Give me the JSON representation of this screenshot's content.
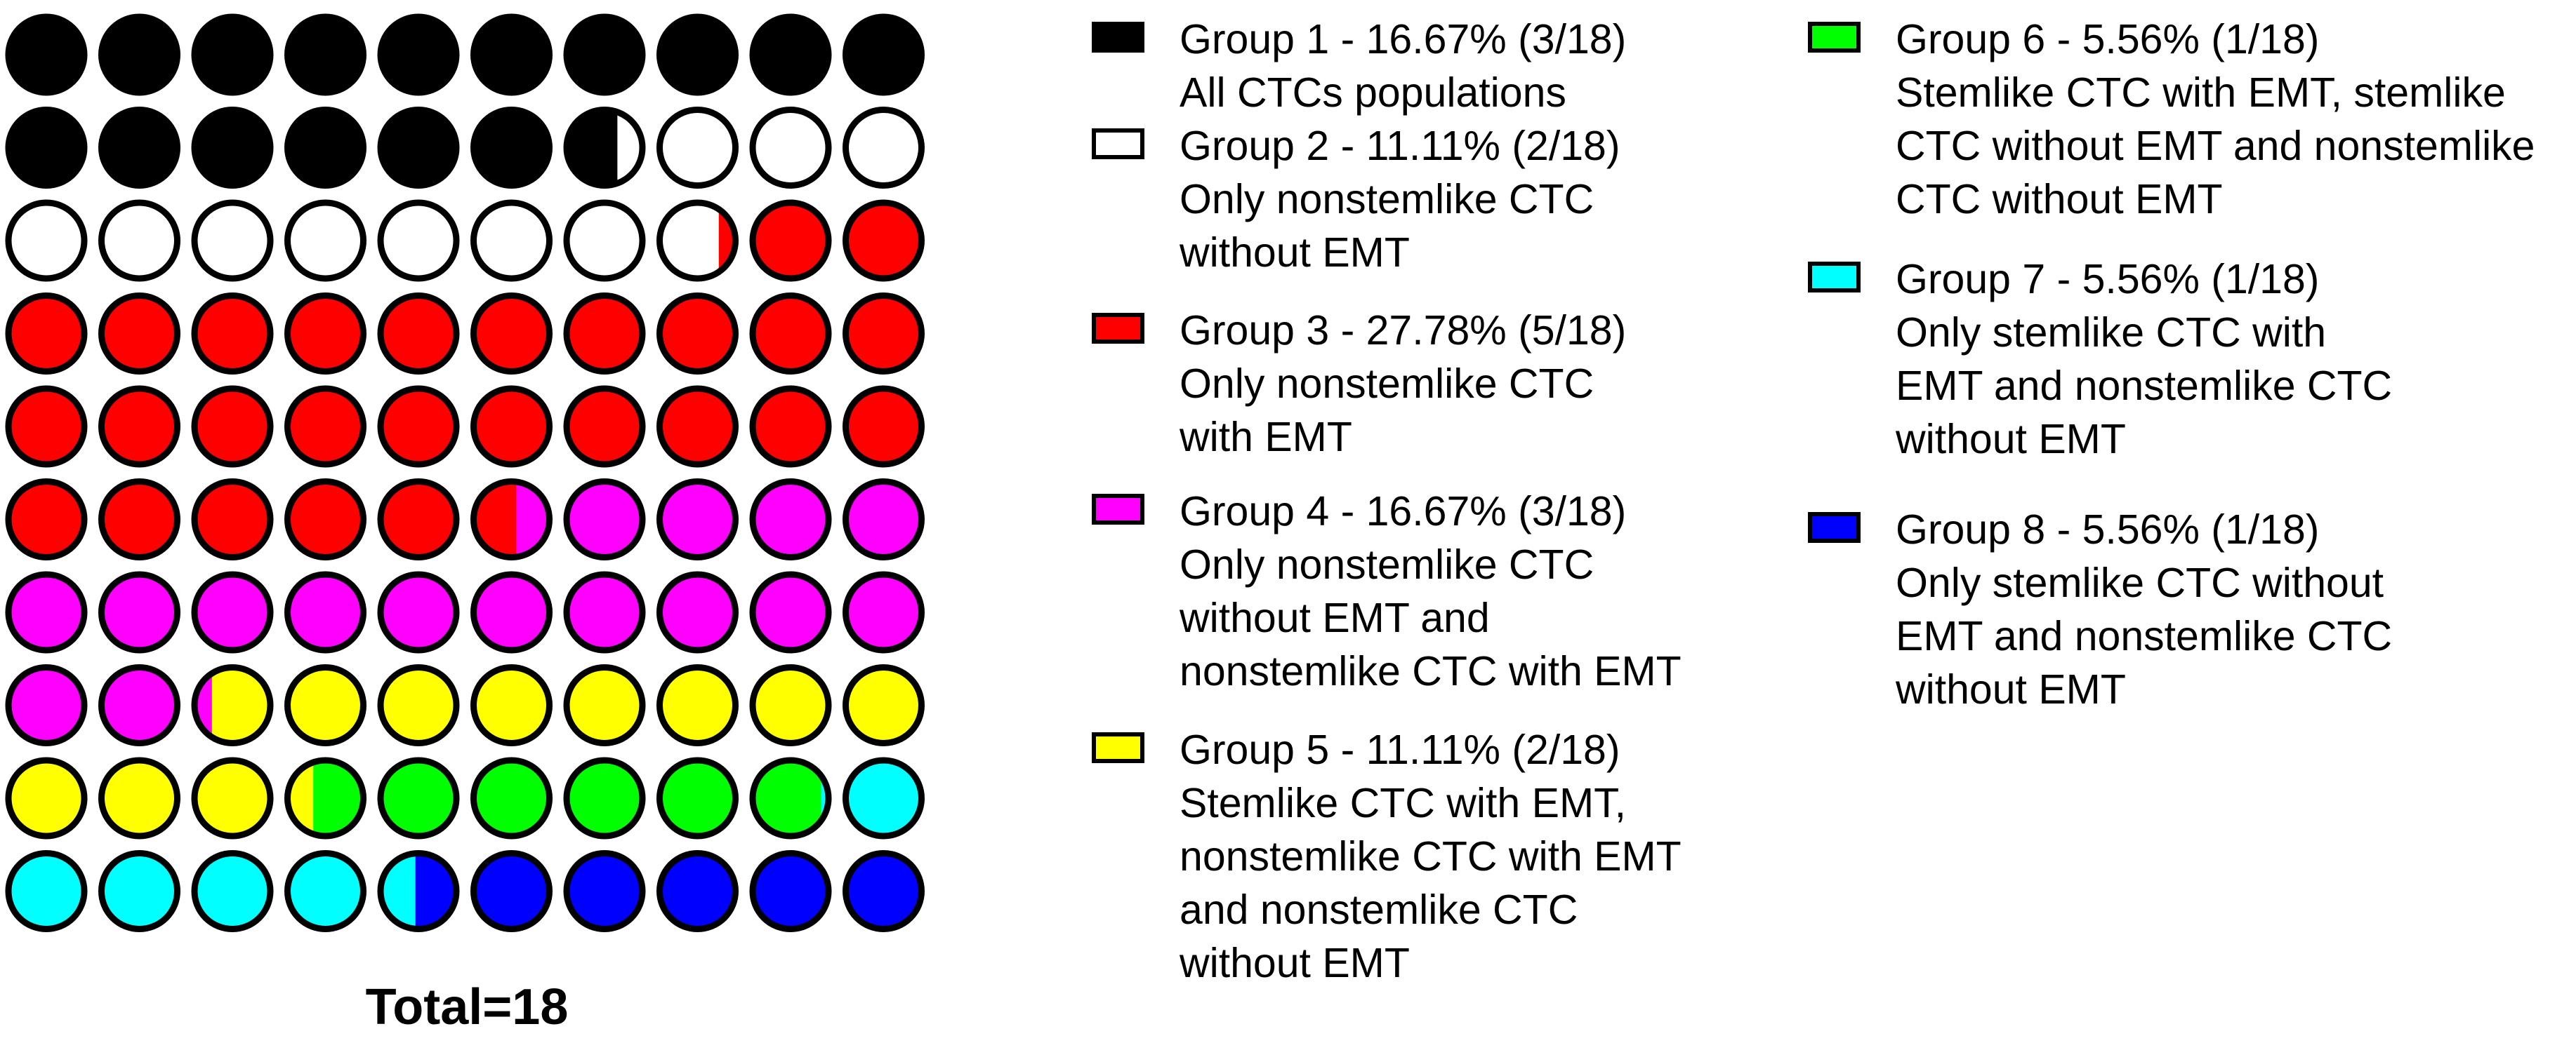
{
  "chart_data": {
    "type": "waffle",
    "total_text": "Total=18",
    "total": 18,
    "grid": {
      "rows": 10,
      "cols": 10
    },
    "groups": [
      {
        "title": "Group 1 - 16.67% (3/18)",
        "desc": "All CTCs populations",
        "percent": 16.67,
        "count": 3,
        "color": "#000000",
        "desc_lines": [
          "All CTCs populations"
        ]
      },
      {
        "title": "Group 2 - 11.11% (2/18)",
        "desc": "Only nonstemlike CTC without EMT",
        "percent": 11.11,
        "count": 2,
        "color": "#ffffff",
        "desc_lines": [
          "Only nonstemlike CTC",
          "without EMT"
        ]
      },
      {
        "title": "Group 3 - 27.78% (5/18)",
        "desc": "Only nonstemlike CTC with EMT",
        "percent": 27.78,
        "count": 5,
        "color": "#ff0000",
        "desc_lines": [
          "Only nonstemlike CTC",
          "with EMT"
        ]
      },
      {
        "title": "Group 4 - 16.67% (3/18)",
        "desc": "Only nonstemlike CTC without EMT and nonstemlike CTC with EMT",
        "percent": 16.67,
        "count": 3,
        "color": "#ff00ff",
        "desc_lines": [
          "Only nonstemlike CTC",
          "without EMT and",
          "nonstemlike CTC with EMT"
        ]
      },
      {
        "title": "Group 5 - 11.11% (2/18)",
        "desc": "Stemlike CTC with EMT, nonstemlike CTC with EMT and nonstemlike CTC without EMT",
        "percent": 11.11,
        "count": 2,
        "color": "#ffff00",
        "desc_lines": [
          "Stemlike CTC with EMT,",
          "nonstemlike CTC with EMT",
          "and nonstemlike CTC",
          "without EMT"
        ]
      },
      {
        "title": "Group 6 - 5.56% (1/18)",
        "desc": "Stemlike CTC with EMT, stemlike CTC without EMT and nonstemlike CTC without EMT",
        "percent": 5.56,
        "count": 1,
        "color": "#00ff00",
        "desc_lines": [
          "Stemlike CTC with EMT, stemlike",
          "CTC without EMT and nonstemlike",
          "CTC without EMT"
        ]
      },
      {
        "title": "Group 7 - 5.56% (1/18)",
        "desc": "Only stemlike CTC with EMT and nonstemlike CTC without EMT",
        "percent": 5.56,
        "count": 1,
        "color": "#00ffff",
        "desc_lines": [
          "Only stemlike CTC with",
          "EMT and nonstemlike CTC",
          "without EMT"
        ]
      },
      {
        "title": "Group 8 - 5.56% (1/18)",
        "desc": "Only stemlike CTC without EMT and nonstemlike CTC without EMT",
        "percent": 5.56,
        "count": 1,
        "color": "#0000ff",
        "desc_lines": [
          "Only stemlike CTC without",
          "EMT and nonstemlike CTC",
          "without EMT"
        ]
      }
    ]
  }
}
